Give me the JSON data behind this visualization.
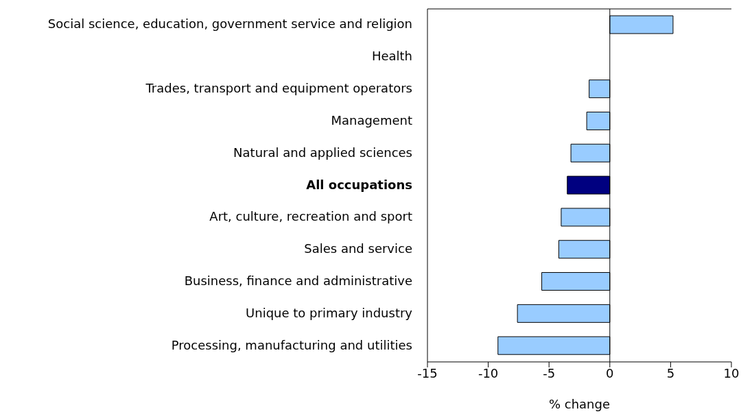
{
  "chart_data": {
    "type": "bar",
    "orientation": "horizontal",
    "categories": [
      "Social science, education, government service and religion",
      "Health",
      "Trades, transport and equipment operators",
      "Management",
      "Natural and applied sciences",
      "All occupations",
      "Art, culture, recreation and sport",
      "Sales and service",
      "Business, finance and administrative",
      "Unique to primary industry",
      "Processing, manufacturing and utilities"
    ],
    "values": [
      5.2,
      0,
      -1.7,
      -1.9,
      -3.2,
      -3.5,
      -4.0,
      -4.2,
      -5.6,
      -7.6,
      -9.2
    ],
    "colors": [
      "#99ccff",
      "#99ccff",
      "#99ccff",
      "#99ccff",
      "#99ccff",
      "#000080",
      "#99ccff",
      "#99ccff",
      "#99ccff",
      "#99ccff",
      "#99ccff"
    ],
    "xlim": [
      -15,
      10
    ],
    "xticks": [
      -15,
      -10,
      -5,
      0,
      5,
      10
    ],
    "xlabel": "% change",
    "ref_lines": [
      {
        "axis": "x",
        "value": 0
      }
    ]
  }
}
